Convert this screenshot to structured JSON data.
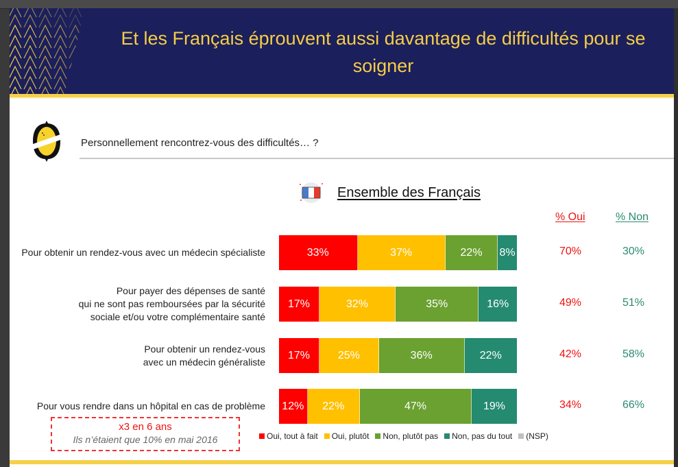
{
  "header": {
    "title": "Et les Français éprouvent aussi davantage de difficultés pour se soigner"
  },
  "question": "Personnellement rencontrez-vous des difficultés… ?",
  "subtitle": "Ensemble des Français",
  "icons": {
    "logo": "yellow-oval-logo-icon",
    "flag": "french-flag-icon"
  },
  "columns": {
    "oui": "% Oui",
    "non": "% Non"
  },
  "colors": {
    "header_bg": "#1b1f5c",
    "title_gold": "#f6cd46",
    "oui_tout_a_fait": "#ff0000",
    "oui_plutot": "#ffc000",
    "non_plutot_pas": "#6aa131",
    "non_pas_du_tout": "#248a70",
    "nsp": "#c0c0c0",
    "oui_text": "#ee1111",
    "non_text": "#2a8a70"
  },
  "callout": {
    "title": "x3 en 6 ans",
    "subtitle": "Ils n’étaient que 10% en mai 2016"
  },
  "chart_data": {
    "type": "bar",
    "orientation": "horizontal",
    "stacked": true,
    "title": "Ensemble des Français",
    "xlabel": "",
    "ylabel": "",
    "xlim": [
      0,
      100
    ],
    "legend_position": "bottom",
    "categories": [
      "Pour obtenir un rendez-vous avec un médecin spécialiste",
      "Pour payer des dépenses de santé\nqui ne sont pas remboursées par la sécurité\nsociale et/ou votre complémentaire santé",
      "Pour obtenir un rendez-vous\navec un médecin généraliste",
      "Pour vous rendre dans un hôpital en cas de problème"
    ],
    "series": [
      {
        "name": "Oui, tout à fait",
        "values": [
          33,
          17,
          17,
          12
        ]
      },
      {
        "name": "Oui, plutôt",
        "values": [
          37,
          32,
          25,
          22
        ]
      },
      {
        "name": "Non, plutôt pas",
        "values": [
          22,
          35,
          36,
          47
        ]
      },
      {
        "name": "Non, pas du tout",
        "values": [
          8,
          16,
          22,
          19
        ]
      },
      {
        "name": "(NSP)",
        "values": [
          0,
          0,
          0,
          0
        ]
      }
    ],
    "totals": {
      "oui": [
        "70%",
        "49%",
        "42%",
        "34%"
      ],
      "non": [
        "30%",
        "51%",
        "58%",
        "66%"
      ]
    }
  }
}
